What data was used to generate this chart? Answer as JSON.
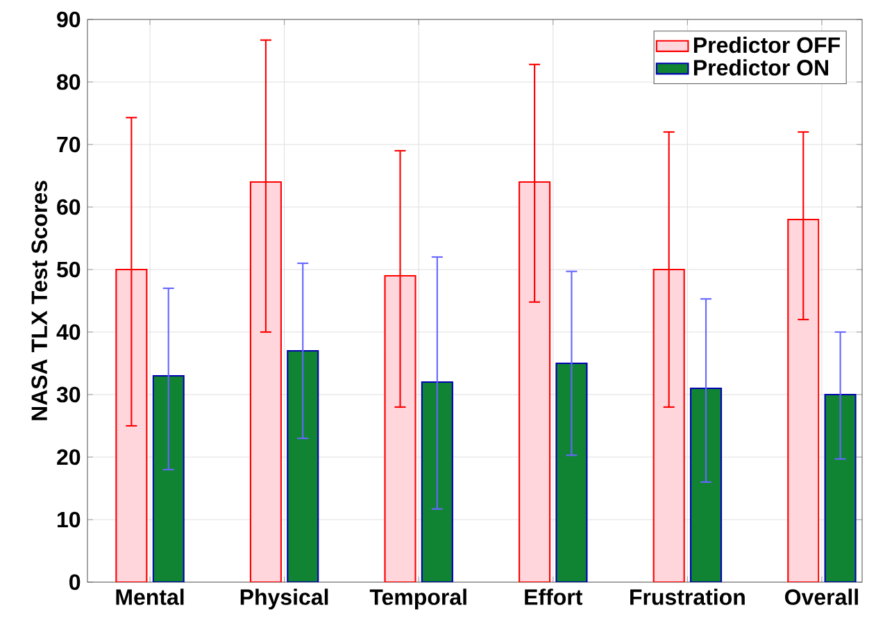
{
  "chart_data": {
    "type": "bar",
    "ylabel": "NASA TLX Test Scores",
    "categories": [
      "Mental",
      "Physical",
      "Temporal",
      "Effort",
      "Frustration",
      "Overall"
    ],
    "series": [
      {
        "name": "Predictor OFF",
        "color": "#ffd6dc",
        "values": [
          50,
          64,
          49,
          64,
          50,
          58
        ],
        "errors": [
          [
            25,
            74.3
          ],
          [
            40,
            86.7
          ],
          [
            28,
            69
          ],
          [
            44.8,
            82.8
          ],
          [
            28,
            72
          ],
          [
            42,
            72
          ]
        ]
      },
      {
        "name": "Predictor ON",
        "color": "#118434",
        "values": [
          33,
          37,
          32,
          35,
          31,
          30
        ],
        "errors": [
          [
            18,
            47
          ],
          [
            23,
            51
          ],
          [
            11.7,
            52
          ],
          [
            20.3,
            49.7
          ],
          [
            16,
            45.3
          ],
          [
            19.7,
            40
          ]
        ]
      }
    ],
    "ylim": [
      0,
      90
    ],
    "yticks": [
      0,
      10,
      20,
      30,
      40,
      50,
      60,
      70,
      80,
      90
    ],
    "grid": true,
    "legend": "top right"
  }
}
